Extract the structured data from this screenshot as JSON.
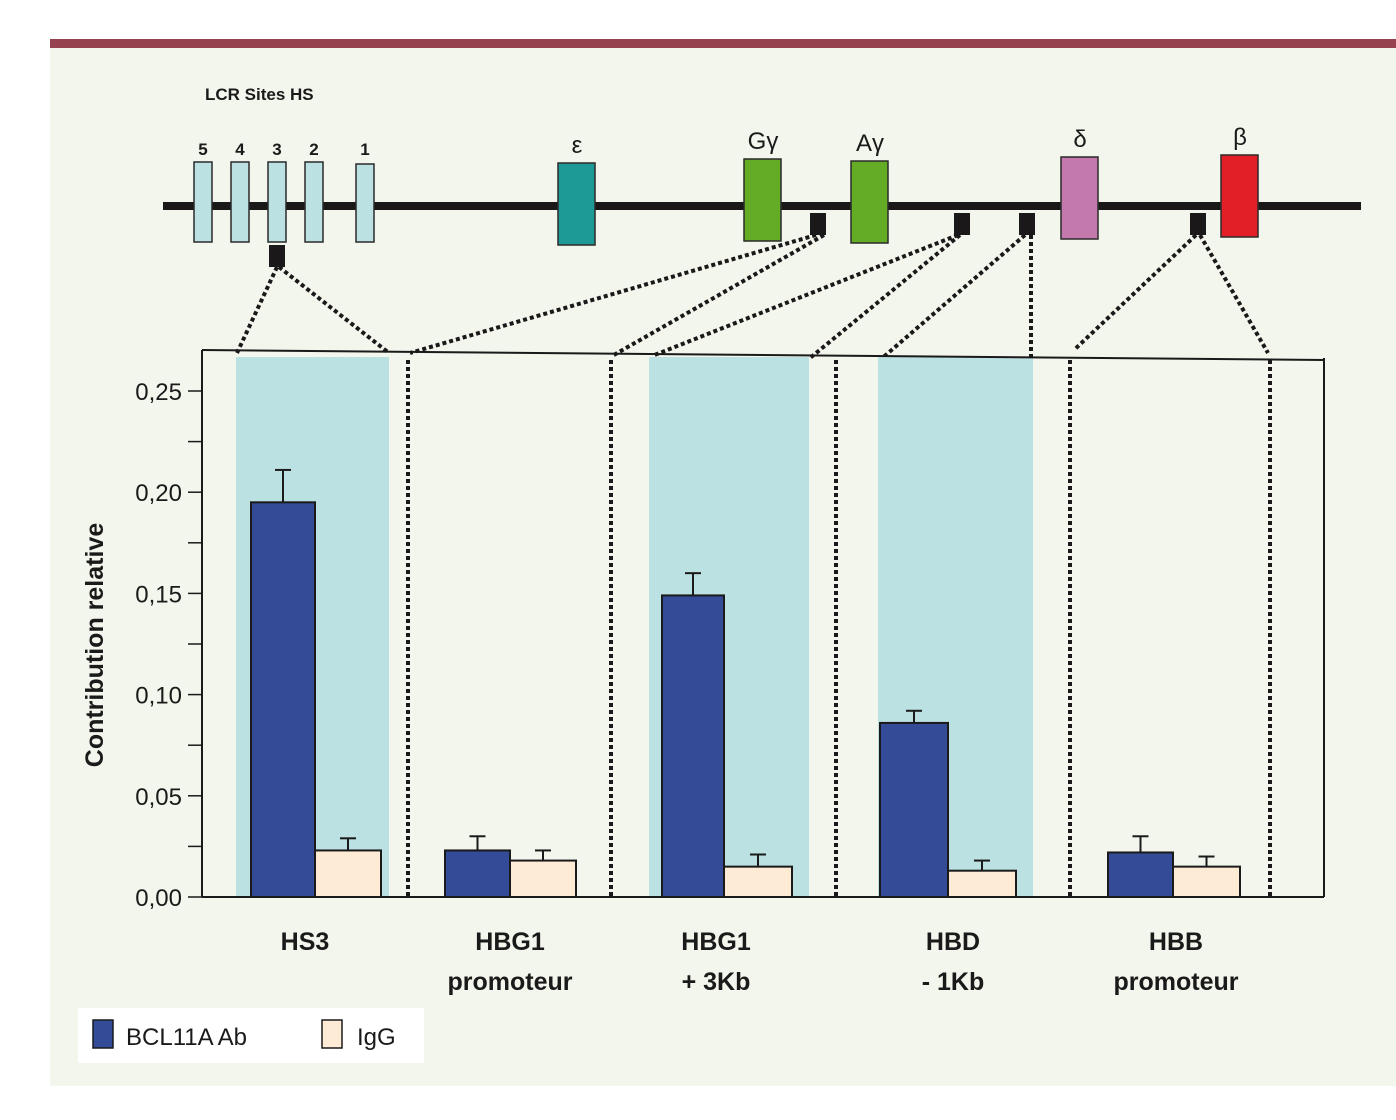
{
  "diagram": {
    "lcr_title": "LCR Sites HS",
    "hs_sites": [
      "5",
      "4",
      "3",
      "2",
      "1"
    ],
    "genes": [
      {
        "label": "ε",
        "color": "#1e9a96"
      },
      {
        "label": "Gγ",
        "color": "#64ac26"
      },
      {
        "label": "Aγ",
        "color": "#64ac26"
      },
      {
        "label": "δ",
        "color": "#c479ad"
      },
      {
        "label": "β",
        "color": "#e21f26"
      }
    ],
    "hs_color": "#bce1e3",
    "highlight_color": "#bce1e3",
    "frame_color": "#96434f"
  },
  "chart_data": {
    "type": "bar",
    "title": "",
    "xlabel": "",
    "ylabel": "Contribution relative",
    "ylim": [
      0,
      0.27
    ],
    "yticks": [
      "0,00",
      "0,05",
      "0,10",
      "0,15",
      "0,20",
      "0,25"
    ],
    "ytick_values": [
      0,
      0.05,
      0.1,
      0.15,
      0.2,
      0.25
    ],
    "categories": [
      {
        "line1": "HS3",
        "line2": "",
        "highlighted": true
      },
      {
        "line1": "HBG1",
        "line2": "promoteur",
        "highlighted": false
      },
      {
        "line1": "HBG1",
        "line2": "+ 3Kb",
        "highlighted": true
      },
      {
        "line1": "HBD",
        "line2": "- 1Kb",
        "highlighted": true
      },
      {
        "line1": "HBB",
        "line2": "promoteur",
        "highlighted": false
      }
    ],
    "series": [
      {
        "name": "BCL11A Ab",
        "color": "#344b98",
        "values": [
          0.195,
          0.023,
          0.149,
          0.086,
          0.022
        ],
        "errors": [
          0.016,
          0.007,
          0.011,
          0.006,
          0.008
        ]
      },
      {
        "name": "IgG",
        "color": "#feebd5",
        "values": [
          0.023,
          0.018,
          0.015,
          0.013,
          0.015
        ],
        "errors": [
          0.006,
          0.005,
          0.006,
          0.005,
          0.005
        ]
      }
    ],
    "grid": false,
    "legend": "bottom-left"
  }
}
